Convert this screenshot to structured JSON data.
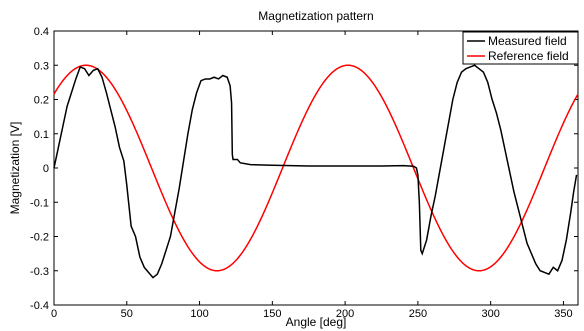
{
  "chart_data": {
    "type": "line",
    "title": "Magnetization pattern",
    "xlabel": "Angle [deg]",
    "ylabel": "Magnetization [V]",
    "xlim": [
      0,
      360
    ],
    "ylim": [
      -0.4,
      0.4
    ],
    "xticks": [
      0,
      50,
      100,
      150,
      200,
      250,
      300,
      350
    ],
    "xtick_labels": [
      "0",
      "50",
      "100",
      "150",
      "200",
      "250",
      "300",
      "350"
    ],
    "yticks": [
      -0.4,
      -0.3,
      -0.2,
      -0.1,
      0,
      0.1,
      0.2,
      0.3,
      0.4
    ],
    "ytick_labels": [
      "-0.4",
      "-0.3",
      "-0.2",
      "-0.1",
      "0",
      "0.1",
      "0.2",
      "0.3",
      "0.4"
    ],
    "grid": false,
    "legend_position": "top-right",
    "series": [
      {
        "name": "Measured field",
        "color": "#000000",
        "points": [
          [
            0,
            0.0
          ],
          [
            3,
            0.06
          ],
          [
            6,
            0.12
          ],
          [
            9,
            0.18
          ],
          [
            12,
            0.22
          ],
          [
            15,
            0.26
          ],
          [
            18,
            0.295
          ],
          [
            21,
            0.29
          ],
          [
            24,
            0.27
          ],
          [
            27,
            0.285
          ],
          [
            30,
            0.29
          ],
          [
            33,
            0.265
          ],
          [
            36,
            0.22
          ],
          [
            39,
            0.17
          ],
          [
            42,
            0.12
          ],
          [
            45,
            0.06
          ],
          [
            48,
            0.02
          ],
          [
            50,
            -0.05
          ],
          [
            53,
            -0.17
          ],
          [
            56,
            -0.2
          ],
          [
            59,
            -0.26
          ],
          [
            62,
            -0.29
          ],
          [
            65,
            -0.305
          ],
          [
            68,
            -0.32
          ],
          [
            71,
            -0.31
          ],
          [
            74,
            -0.28
          ],
          [
            77,
            -0.24
          ],
          [
            80,
            -0.2
          ],
          [
            83,
            -0.13
          ],
          [
            86,
            -0.06
          ],
          [
            89,
            0.02
          ],
          [
            92,
            0.1
          ],
          [
            95,
            0.17
          ],
          [
            98,
            0.22
          ],
          [
            101,
            0.255
          ],
          [
            104,
            0.26
          ],
          [
            107,
            0.26
          ],
          [
            110,
            0.265
          ],
          [
            113,
            0.26
          ],
          [
            116,
            0.27
          ],
          [
            119,
            0.265
          ],
          [
            121,
            0.24
          ],
          [
            122,
            0.19
          ],
          [
            122.5,
            0.04
          ],
          [
            123,
            0.025
          ],
          [
            126,
            0.025
          ],
          [
            128,
            0.015
          ],
          [
            135,
            0.01
          ],
          [
            150,
            0.008
          ],
          [
            175,
            0.006
          ],
          [
            200,
            0.006
          ],
          [
            225,
            0.006
          ],
          [
            240,
            0.007
          ],
          [
            247,
            0.005
          ],
          [
            249,
            0.0
          ],
          [
            250,
            -0.02
          ],
          [
            251,
            -0.1
          ],
          [
            252,
            -0.24
          ],
          [
            253,
            -0.25
          ],
          [
            256,
            -0.21
          ],
          [
            259,
            -0.14
          ],
          [
            262,
            -0.08
          ],
          [
            265,
            -0.01
          ],
          [
            268,
            0.06
          ],
          [
            271,
            0.13
          ],
          [
            274,
            0.2
          ],
          [
            277,
            0.25
          ],
          [
            280,
            0.28
          ],
          [
            283,
            0.29
          ],
          [
            286,
            0.295
          ],
          [
            289,
            0.3
          ],
          [
            292,
            0.29
          ],
          [
            295,
            0.28
          ],
          [
            298,
            0.25
          ],
          [
            301,
            0.2
          ],
          [
            304,
            0.16
          ],
          [
            307,
            0.11
          ],
          [
            310,
            0.05
          ],
          [
            313,
            -0.01
          ],
          [
            316,
            -0.07
          ],
          [
            319,
            -0.12
          ],
          [
            322,
            -0.17
          ],
          [
            325,
            -0.22
          ],
          [
            328,
            -0.25
          ],
          [
            331,
            -0.28
          ],
          [
            334,
            -0.3
          ],
          [
            337,
            -0.305
          ],
          [
            340,
            -0.31
          ],
          [
            343,
            -0.29
          ],
          [
            346,
            -0.3
          ],
          [
            349,
            -0.27
          ],
          [
            352,
            -0.21
          ],
          [
            355,
            -0.13
          ],
          [
            357,
            -0.07
          ],
          [
            359,
            -0.02
          ]
        ]
      },
      {
        "name": "Reference field",
        "color": "#ff0000",
        "amplitude": 0.3,
        "peaks_deg": [
          22,
          112,
          202,
          292
        ]
      }
    ]
  }
}
